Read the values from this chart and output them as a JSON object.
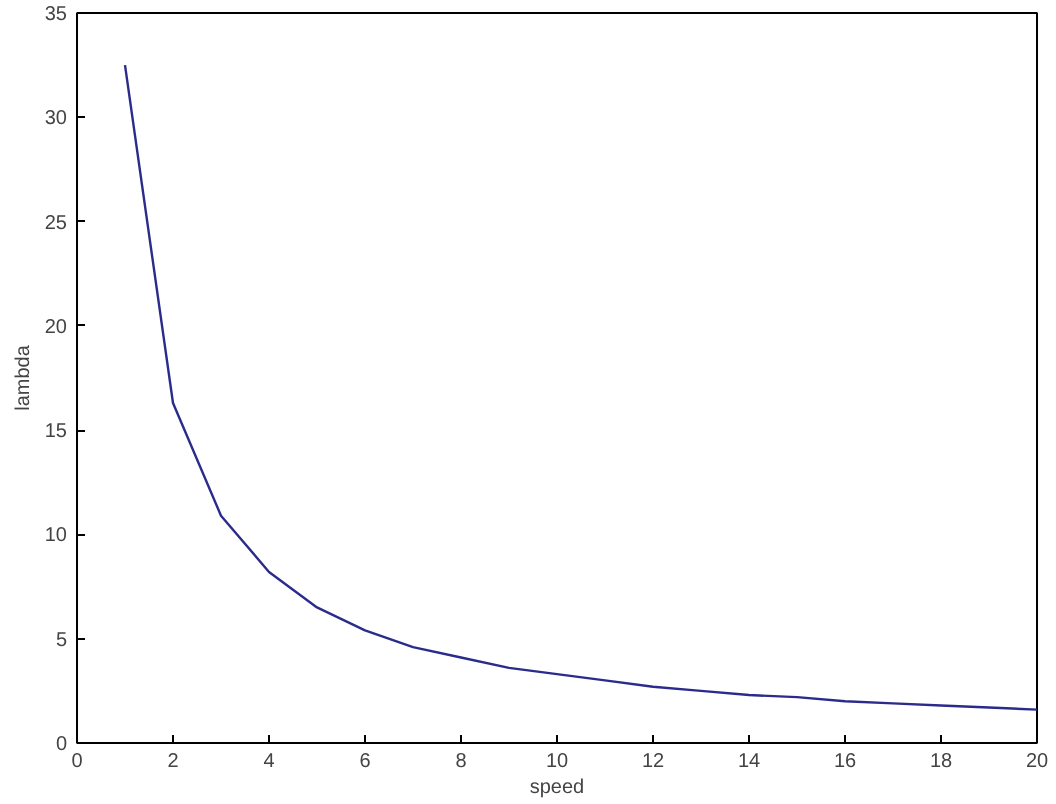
{
  "chart_data": {
    "type": "line",
    "xlabel": "speed",
    "ylabel": "lambda",
    "x": [
      1,
      2,
      3,
      4,
      5,
      6,
      7,
      8,
      9,
      10,
      11,
      12,
      13,
      14,
      15,
      16,
      17,
      18,
      19,
      20
    ],
    "series": [
      {
        "color": "#2b2b8c",
        "values": [
          32.5,
          16.3,
          10.9,
          8.2,
          6.5,
          5.4,
          4.6,
          4.1,
          3.6,
          3.3,
          3.0,
          2.7,
          2.5,
          2.3,
          2.2,
          2.0,
          1.9,
          1.8,
          1.7,
          1.6
        ]
      }
    ],
    "xlim": [
      0,
      20
    ],
    "ylim": [
      0,
      35
    ],
    "xticks": [
      0,
      2,
      4,
      6,
      8,
      10,
      12,
      14,
      16,
      18,
      20
    ],
    "yticks": [
      0,
      5,
      10,
      15,
      20,
      25,
      30,
      35
    ],
    "grid": false,
    "marker": "none",
    "line_style": "solid"
  }
}
